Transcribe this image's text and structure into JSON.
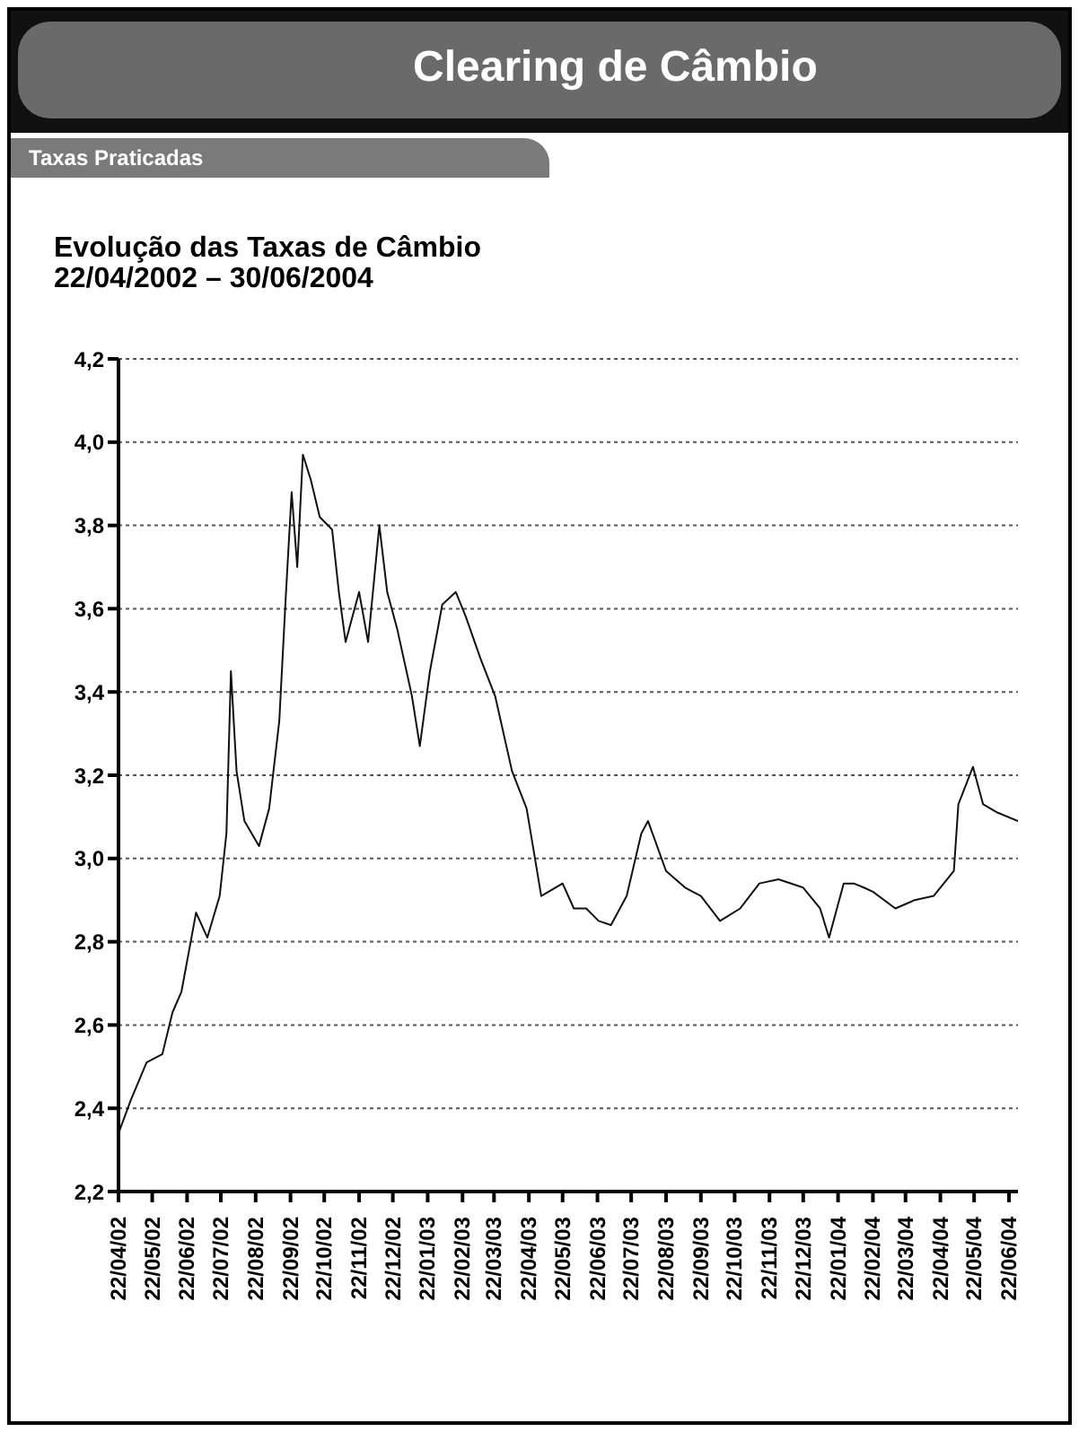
{
  "chart_data": {
    "type": "line",
    "title": "Evolução das Taxas de Câmbio",
    "subtitle": "22/04/2002 – 30/06/2004",
    "annotations": [
      "Clearing de Câmbio",
      "Taxas Praticadas"
    ],
    "x": [
      "2002-04-22",
      "2002-05-03",
      "2002-05-17",
      "2002-05-31",
      "2002-06-09",
      "2002-06-17",
      "2002-06-30",
      "2002-07-10",
      "2002-07-21",
      "2002-07-27",
      "2002-07-31",
      "2002-08-05",
      "2002-08-12",
      "2002-08-25",
      "2002-09-03",
      "2002-09-12",
      "2002-09-18",
      "2002-09-23",
      "2002-09-28",
      "2002-10-03",
      "2002-10-10",
      "2002-10-18",
      "2002-10-29",
      "2002-11-04",
      "2002-11-10",
      "2002-11-22",
      "2002-11-30",
      "2002-12-10",
      "2002-12-17",
      "2002-12-26",
      "2003-01-08",
      "2003-01-15",
      "2003-01-24",
      "2003-02-04",
      "2003-02-16",
      "2003-02-25",
      "2003-03-10",
      "2003-03-23",
      "2003-04-07",
      "2003-04-20",
      "2003-05-03",
      "2003-05-22",
      "2003-06-01",
      "2003-06-12",
      "2003-06-23",
      "2003-07-04",
      "2003-07-18",
      "2003-07-31",
      "2003-08-06",
      "2003-08-22",
      "2003-09-08",
      "2003-09-22",
      "2003-10-09",
      "2003-10-27",
      "2003-11-13",
      "2003-11-30",
      "2003-12-22",
      "2004-01-06",
      "2004-01-14",
      "2004-01-27",
      "2004-02-05",
      "2004-02-14",
      "2004-02-22",
      "2004-03-13",
      "2004-03-30",
      "2004-04-16",
      "2004-05-04",
      "2004-05-08",
      "2004-05-21",
      "2004-05-30",
      "2004-06-12",
      "2004-06-30"
    ],
    "series": [
      {
        "color": "#111111",
        "values": [
          2.34,
          2.42,
          2.51,
          2.53,
          2.63,
          2.68,
          2.87,
          2.81,
          2.91,
          3.06,
          3.45,
          3.21,
          3.09,
          3.03,
          3.12,
          3.33,
          3.64,
          3.88,
          3.7,
          3.97,
          3.91,
          3.82,
          3.79,
          3.64,
          3.52,
          3.64,
          3.52,
          3.8,
          3.64,
          3.55,
          3.39,
          3.27,
          3.45,
          3.61,
          3.64,
          3.58,
          3.48,
          3.39,
          3.21,
          3.12,
          2.91,
          2.94,
          2.88,
          2.88,
          2.85,
          2.84,
          2.91,
          3.06,
          3.09,
          2.97,
          2.93,
          2.91,
          2.85,
          2.88,
          2.94,
          2.95,
          2.93,
          2.88,
          2.81,
          2.94,
          2.94,
          2.93,
          2.92,
          2.88,
          2.9,
          2.91,
          2.97,
          3.13,
          3.22,
          3.13,
          3.11,
          3.09
        ]
      }
    ],
    "xlim": [
      "2002-04-22",
      "2004-06-30"
    ],
    "xticks": [
      {
        "value": "2002-04-22",
        "label": "22/04/02"
      },
      {
        "value": "2002-05-22",
        "label": "22/05/02"
      },
      {
        "value": "2002-06-22",
        "label": "22/06/02"
      },
      {
        "value": "2002-07-22",
        "label": "22/07/02"
      },
      {
        "value": "2002-08-22",
        "label": "22/08/02"
      },
      {
        "value": "2002-09-22",
        "label": "22/09/02"
      },
      {
        "value": "2002-10-22",
        "label": "22/10/02"
      },
      {
        "value": "2002-11-22",
        "label": "22/11/02"
      },
      {
        "value": "2002-12-22",
        "label": "22/12/02"
      },
      {
        "value": "2003-01-22",
        "label": "22/01/03"
      },
      {
        "value": "2003-02-22",
        "label": "22/02/03"
      },
      {
        "value": "2003-03-22",
        "label": "22/03/03"
      },
      {
        "value": "2003-04-22",
        "label": "22/04/03"
      },
      {
        "value": "2003-05-22",
        "label": "22/05/03"
      },
      {
        "value": "2003-06-22",
        "label": "22/06/03"
      },
      {
        "value": "2003-07-22",
        "label": "22/07/03"
      },
      {
        "value": "2003-08-22",
        "label": "22/08/03"
      },
      {
        "value": "2003-09-22",
        "label": "22/09/03"
      },
      {
        "value": "2003-10-22",
        "label": "22/10/03"
      },
      {
        "value": "2003-11-22",
        "label": "22/11/03"
      },
      {
        "value": "2003-12-22",
        "label": "22/12/03"
      },
      {
        "value": "2004-01-22",
        "label": "22/01/04"
      },
      {
        "value": "2004-02-22",
        "label": "22/02/04"
      },
      {
        "value": "2004-03-22",
        "label": "22/03/04"
      },
      {
        "value": "2004-04-22",
        "label": "22/04/04"
      },
      {
        "value": "2004-05-22",
        "label": "22/05/04"
      },
      {
        "value": "2004-06-22",
        "label": "22/06/04"
      }
    ],
    "ylim": [
      2.2,
      4.2
    ],
    "yticks": [
      {
        "value": 2.2,
        "label": "2,2"
      },
      {
        "value": 2.4,
        "label": "2,4"
      },
      {
        "value": 2.6,
        "label": "2,6"
      },
      {
        "value": 2.8,
        "label": "2,8"
      },
      {
        "value": 3.0,
        "label": "3,0"
      },
      {
        "value": 3.2,
        "label": "3,2"
      },
      {
        "value": 3.4,
        "label": "3,4"
      },
      {
        "value": 3.6,
        "label": "3,6"
      },
      {
        "value": 3.8,
        "label": "3,8"
      },
      {
        "value": 4.0,
        "label": "4,0"
      },
      {
        "value": 4.2,
        "label": "4,2"
      }
    ],
    "grid": "y"
  }
}
